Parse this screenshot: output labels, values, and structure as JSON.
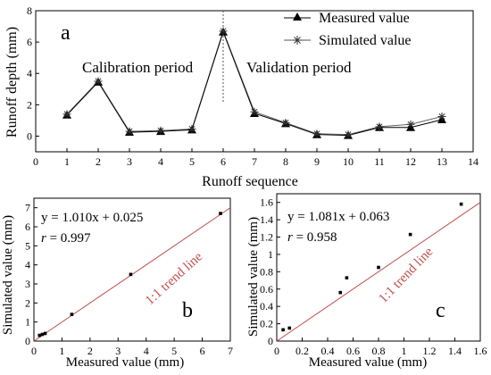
{
  "colors": {
    "axis": "#000000",
    "trend": "#c0504d",
    "marker": "#000000"
  },
  "chart_data": [
    {
      "type": "line",
      "panel_letter": "a",
      "xlabel": "Runoff sequence",
      "ylabel": "Runoff depth (mm)",
      "xlim": [
        0,
        14
      ],
      "ylim": [
        -1,
        8
      ],
      "xticks": [
        0,
        1,
        2,
        3,
        4,
        5,
        6,
        7,
        8,
        9,
        10,
        11,
        12,
        13,
        14
      ],
      "yticks": [
        0,
        2,
        4,
        6,
        8
      ],
      "x": [
        1,
        2,
        3,
        4,
        5,
        6,
        7,
        8,
        9,
        10,
        11,
        12,
        13
      ],
      "series": [
        {
          "name": "Measured value",
          "marker": "triangle",
          "values": [
            1.35,
            3.45,
            0.25,
            0.3,
            0.4,
            6.65,
            1.45,
            0.8,
            0.1,
            0.05,
            0.55,
            0.55,
            1.05
          ]
        },
        {
          "name": "Simulated value",
          "marker": "asterisk",
          "values": [
            1.4,
            3.5,
            0.3,
            0.35,
            0.45,
            6.7,
            1.55,
            0.85,
            0.15,
            0.1,
            0.6,
            0.75,
            1.25
          ]
        }
      ],
      "annotations": [
        "Calibration period",
        "Validation period"
      ],
      "divider_x": 6,
      "legend": "top-right"
    },
    {
      "type": "scatter",
      "panel_letter": "b",
      "xlabel": "Measured value (mm)",
      "ylabel": "Simulated value (mm)",
      "xlim": [
        0,
        7
      ],
      "ylim": [
        0,
        7.5
      ],
      "xticks": [
        0,
        1,
        2,
        3,
        4,
        5,
        6,
        7
      ],
      "yticks": [
        0,
        1,
        2,
        3,
        4,
        5,
        6,
        7
      ],
      "x": [
        0.2,
        0.3,
        0.4,
        1.35,
        3.45,
        6.65
      ],
      "y": [
        0.3,
        0.35,
        0.4,
        1.4,
        3.5,
        6.7
      ],
      "equation": "y = 1.010x + 0.025",
      "r_label": "r",
      "r_value": " = 0.997",
      "trend_label": "1:1 trend line"
    },
    {
      "type": "scatter",
      "panel_letter": "c",
      "xlabel": "Measured value (mm)",
      "ylabel": "Simulated value (mm)",
      "xlim": [
        0,
        1.6
      ],
      "ylim": [
        0,
        1.7
      ],
      "xticks": [
        0,
        0.2,
        0.4,
        0.6,
        0.8,
        1.0,
        1.2,
        1.4,
        1.6
      ],
      "yticks": [
        0,
        0.2,
        0.4,
        0.6,
        0.8,
        1.0,
        1.2,
        1.4,
        1.6
      ],
      "x": [
        0.05,
        0.1,
        0.5,
        0.55,
        0.8,
        1.05,
        1.45
      ],
      "y": [
        0.13,
        0.15,
        0.56,
        0.73,
        0.85,
        1.23,
        1.58
      ],
      "equation": "y = 1.081x + 0.063",
      "r_label": "r",
      "r_value": " = 0.958",
      "trend_label": "1:1 trend line"
    }
  ]
}
